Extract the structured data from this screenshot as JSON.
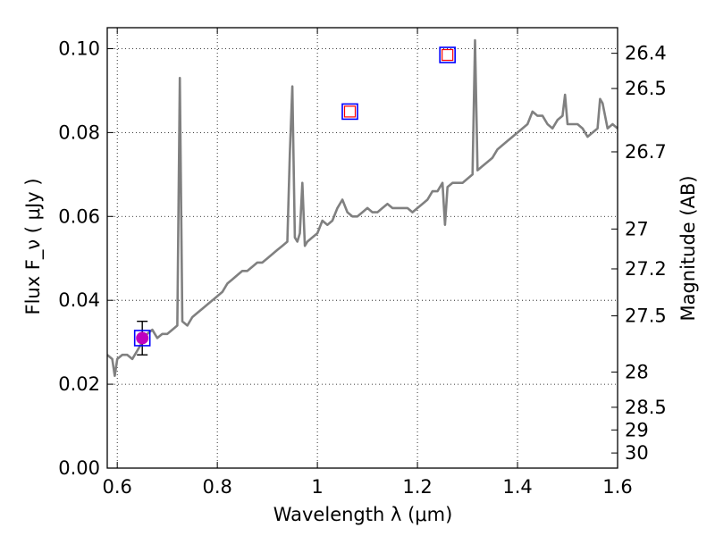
{
  "chart_data": {
    "type": "line",
    "xlim": [
      0.58,
      1.6
    ],
    "ylim": [
      0.0,
      0.105
    ],
    "grid": true,
    "xlabel": "Wavelength  λ (μm)",
    "ylabel": "Flux  F_ν  ( μJy )",
    "ylabel_right": "Magnitude (AB)",
    "x_ticks": [
      {
        "value": 0.6,
        "label": "0.6"
      },
      {
        "value": 0.8,
        "label": "0.8"
      },
      {
        "value": 1.0,
        "label": "1"
      },
      {
        "value": 1.2,
        "label": "1.2"
      },
      {
        "value": 1.4,
        "label": "1.4"
      },
      {
        "value": 1.6,
        "label": "1.6"
      }
    ],
    "y_ticks": [
      {
        "value": 0.0,
        "label": "0.00"
      },
      {
        "value": 0.02,
        "label": "0.02"
      },
      {
        "value": 0.04,
        "label": "0.04"
      },
      {
        "value": 0.06,
        "label": "0.06"
      },
      {
        "value": 0.08,
        "label": "0.08"
      },
      {
        "value": 0.1,
        "label": "0.10"
      }
    ],
    "right_ticks": [
      {
        "flux": 0.0989,
        "label": "26.4"
      },
      {
        "flux": 0.0905,
        "label": "26.5"
      },
      {
        "flux": 0.0754,
        "label": "26.7"
      },
      {
        "flux": 0.057,
        "label": "27"
      },
      {
        "flux": 0.0475,
        "label": "27.2"
      },
      {
        "flux": 0.0363,
        "label": "27.5"
      },
      {
        "flux": 0.0229,
        "label": "28"
      },
      {
        "flux": 0.0145,
        "label": "28.5"
      },
      {
        "flux": 0.0091,
        "label": "29"
      },
      {
        "flux": 0.0036,
        "label": "30"
      }
    ],
    "series": [
      {
        "color": "#808080",
        "x": [
          0.58,
          0.59,
          0.595,
          0.6,
          0.61,
          0.62,
          0.63,
          0.64,
          0.65,
          0.66,
          0.67,
          0.68,
          0.69,
          0.7,
          0.71,
          0.72,
          0.725,
          0.73,
          0.74,
          0.75,
          0.76,
          0.77,
          0.78,
          0.79,
          0.8,
          0.81,
          0.82,
          0.83,
          0.84,
          0.85,
          0.86,
          0.87,
          0.88,
          0.89,
          0.9,
          0.91,
          0.92,
          0.93,
          0.94,
          0.945,
          0.95,
          0.955,
          0.96,
          0.965,
          0.97,
          0.975,
          0.98,
          0.99,
          1.0,
          1.01,
          1.02,
          1.03,
          1.04,
          1.05,
          1.06,
          1.07,
          1.08,
          1.09,
          1.1,
          1.11,
          1.12,
          1.13,
          1.14,
          1.15,
          1.16,
          1.17,
          1.18,
          1.19,
          1.2,
          1.21,
          1.22,
          1.23,
          1.24,
          1.25,
          1.255,
          1.26,
          1.27,
          1.28,
          1.29,
          1.3,
          1.31,
          1.315,
          1.32,
          1.33,
          1.34,
          1.35,
          1.36,
          1.37,
          1.38,
          1.39,
          1.4,
          1.41,
          1.42,
          1.43,
          1.44,
          1.45,
          1.46,
          1.47,
          1.48,
          1.49,
          1.495,
          1.5,
          1.51,
          1.52,
          1.53,
          1.54,
          1.55,
          1.56,
          1.565,
          1.57,
          1.58,
          1.59,
          1.6
        ],
        "y": [
          0.027,
          0.026,
          0.022,
          0.026,
          0.027,
          0.027,
          0.026,
          0.028,
          0.03,
          0.032,
          0.033,
          0.031,
          0.032,
          0.032,
          0.033,
          0.034,
          0.093,
          0.035,
          0.034,
          0.036,
          0.037,
          0.038,
          0.039,
          0.04,
          0.041,
          0.042,
          0.044,
          0.045,
          0.046,
          0.047,
          0.047,
          0.048,
          0.049,
          0.049,
          0.05,
          0.051,
          0.052,
          0.053,
          0.054,
          0.075,
          0.091,
          0.055,
          0.054,
          0.056,
          0.068,
          0.053,
          0.054,
          0.055,
          0.056,
          0.059,
          0.058,
          0.059,
          0.062,
          0.064,
          0.061,
          0.06,
          0.06,
          0.061,
          0.062,
          0.061,
          0.061,
          0.062,
          0.063,
          0.062,
          0.062,
          0.062,
          0.062,
          0.061,
          0.062,
          0.063,
          0.064,
          0.066,
          0.066,
          0.068,
          0.058,
          0.067,
          0.068,
          0.068,
          0.068,
          0.069,
          0.07,
          0.102,
          0.071,
          0.072,
          0.073,
          0.074,
          0.076,
          0.077,
          0.078,
          0.079,
          0.08,
          0.081,
          0.082,
          0.085,
          0.084,
          0.084,
          0.082,
          0.081,
          0.083,
          0.084,
          0.089,
          0.082,
          0.082,
          0.082,
          0.081,
          0.079,
          0.08,
          0.081,
          0.088,
          0.087,
          0.081,
          0.082,
          0.081
        ]
      }
    ],
    "markers": [
      {
        "x": 0.65,
        "y": 0.031,
        "shape": "filled-circle",
        "color": "#bf00bf",
        "yerr": 0.004
      },
      {
        "x": 0.65,
        "y": 0.031,
        "shape": "open-square",
        "color": "#0000ff"
      },
      {
        "x": 1.065,
        "y": 0.085,
        "shape": "open-square",
        "color": "#0000ff"
      },
      {
        "x": 1.065,
        "y": 0.085,
        "shape": "small-open-square",
        "color": "#ff0000"
      },
      {
        "x": 1.26,
        "y": 0.0985,
        "shape": "open-square",
        "color": "#0000ff"
      },
      {
        "x": 1.26,
        "y": 0.0985,
        "shape": "small-open-square",
        "color": "#ff0000"
      }
    ]
  }
}
